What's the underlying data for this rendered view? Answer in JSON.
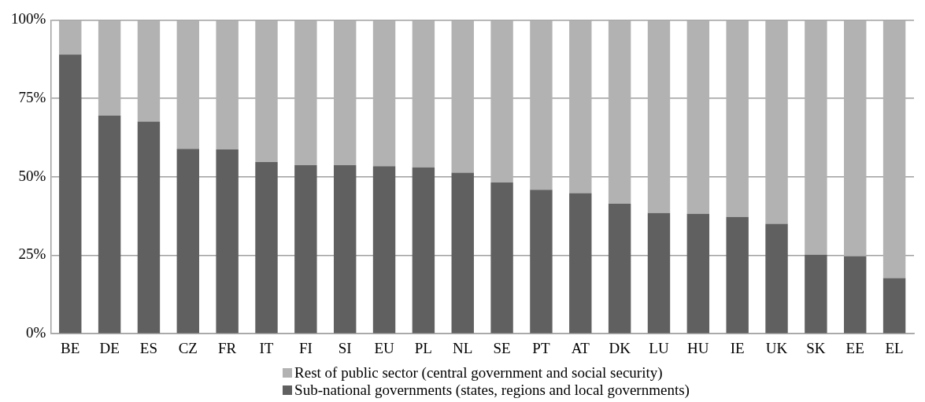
{
  "chart_data": {
    "type": "bar",
    "stacked": true,
    "categories": [
      "BE",
      "DE",
      "ES",
      "CZ",
      "FR",
      "IT",
      "FI",
      "SI",
      "EU",
      "PL",
      "NL",
      "SE",
      "PT",
      "AT",
      "DK",
      "LU",
      "HU",
      "IE",
      "UK",
      "SK",
      "EE",
      "EL"
    ],
    "series": [
      {
        "name": "Sub-national governments (states, regions and local governments)",
        "color": "#606060",
        "values": [
          89.0,
          69.5,
          67.6,
          58.9,
          58.7,
          54.7,
          53.7,
          53.7,
          53.4,
          53.0,
          51.3,
          48.2,
          45.9,
          44.8,
          41.4,
          38.5,
          38.2,
          37.2,
          35.0,
          25.2,
          24.7,
          17.7
        ]
      },
      {
        "name": "Rest of public sector (central government and social security)",
        "color": "#b2b2b2",
        "values": [
          11.0,
          30.5,
          32.4,
          41.1,
          41.3,
          45.3,
          46.3,
          46.3,
          46.6,
          47.0,
          48.7,
          51.8,
          54.1,
          55.2,
          58.6,
          61.5,
          61.8,
          62.8,
          65.0,
          74.8,
          75.3,
          82.3
        ]
      }
    ],
    "ylim": [
      0,
      100
    ],
    "yticks": [
      {
        "value": 0,
        "label": "0%"
      },
      {
        "value": 25,
        "label": "25%"
      },
      {
        "value": 50,
        "label": "50%"
      },
      {
        "value": 75,
        "label": "75%"
      },
      {
        "value": 100,
        "label": "100%"
      }
    ],
    "grid": "y",
    "legend": "bottom"
  }
}
